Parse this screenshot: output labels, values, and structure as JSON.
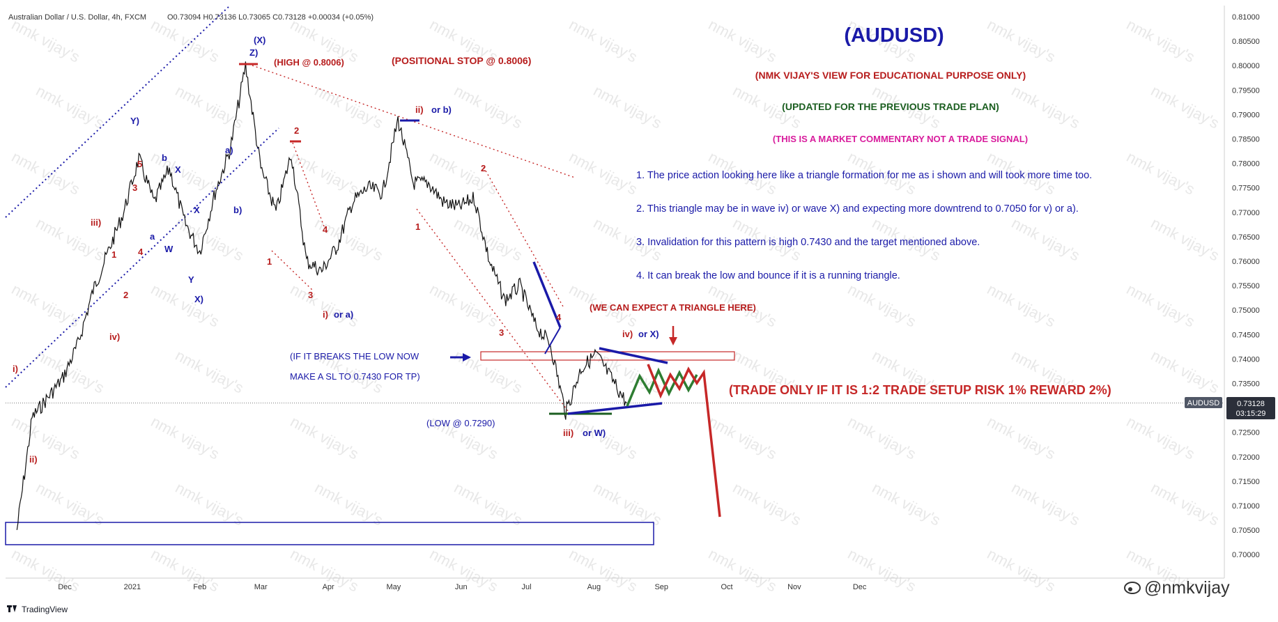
{
  "header": {
    "symbol": "Australian Dollar / U.S. Dollar, 4h, FXCM",
    "ohlc": "O0.73094  H0.73136  L0.73065  C0.73128  +0.00034 (+0.05%)"
  },
  "title": "(AUDUSD)",
  "subtitle_view": "(NMK VIJAY'S VIEW FOR EDUCATIONAL PURPOSE ONLY)",
  "subtitle_update": "(UPDATED FOR THE PREVIOUS TRADE PLAN)",
  "subtitle_commentary": "(THIS IS A MARKET COMMENTARY NOT A TRADE SIGNAL)",
  "notes": [
    "1. The price action looking here like a triangle formation for me as i shown and will took  more time too.",
    "2. This triangle may be in wave iv) or wave X) and expecting more downtrend to 0.7050 for v) or a).",
    "3. Invalidation for this pattern is high 0.7430 and the target mentioned above.",
    "4. It can break the low and bounce if it is a running triangle."
  ],
  "annotations": {
    "high": "(HIGH @ 0.8006)",
    "positional_stop": "(POSITIONAL STOP @ 0.8006)",
    "triangle_expect": "(WE CAN EXPECT A TRIANGLE HERE)",
    "breaks_low_1": "(IF IT BREAKS THE LOW NOW",
    "breaks_low_2": "MAKE A SL TO 0.7430 FOR TP)",
    "low": "(LOW @ 0.7290)",
    "trade_rule": "(TRADE ONLY IF IT IS 1:2 TRADE SETUP RISK 1% REWARD 2%)"
  },
  "wave_labels": {
    "X_top": "(X)",
    "Z": "Z)",
    "Y_top": "Y)",
    "iii": "iii)",
    "iv_left": "iv)",
    "i_left": "i)",
    "ii_left": "ii)",
    "a_small": "a)",
    "b_small": "b)",
    "b_lower": "b",
    "a_lower": "a",
    "X_mid": "X",
    "X_mid2": "X",
    "W": "W",
    "Y_mid": "Y",
    "X_lower": "X)",
    "n1": "1",
    "n2": "2",
    "n3": "3",
    "n4": "4",
    "n5": "5",
    "ii_or_b_num": "ii)",
    "ii_or_b_txt": "or b)",
    "i_or_a_num": "i)",
    "i_or_a_txt": "or a)",
    "iv_or_X_num": "iv)",
    "iv_or_X_txt": "or X)",
    "iii_or_W_num": "iii)",
    "iii_or_W_txt": "or W)"
  },
  "price_badge": {
    "symbol": "AUDUSD",
    "price": "0.73128",
    "countdown": "03:15:29"
  },
  "y_axis_labels": [
    "0.81000",
    "0.80500",
    "0.80000",
    "0.79500",
    "0.79000",
    "0.78500",
    "0.78000",
    "0.77500",
    "0.77000",
    "0.76500",
    "0.76000",
    "0.75500",
    "0.75000",
    "0.74500",
    "0.74000",
    "0.73500",
    "0.72500",
    "0.72000",
    "0.71500",
    "0.71000",
    "0.70500",
    "0.70000"
  ],
  "x_axis_labels": [
    "Dec",
    "2021",
    "Feb",
    "Mar",
    "Apr",
    "May",
    "Jun",
    "Jul",
    "Aug",
    "Sep",
    "Oct",
    "Nov",
    "Dec"
  ],
  "watermark_text": "nmk vijay's",
  "branding": {
    "tradingview": "TradingView",
    "handle": "@nmkvijay"
  },
  "colors": {
    "navy": "#1a1aa8",
    "red": "#b71c1c",
    "green": "#1b5e20",
    "magenta": "#d81b9c",
    "price_line": "#111111"
  },
  "chart_data": {
    "type": "line",
    "title": "Australian Dollar / U.S. Dollar, 4h, FXCM",
    "ylim": [
      0.697,
      0.812
    ],
    "x": [
      "2020-11-09",
      "2020-11-16",
      "2020-11-23",
      "2020-11-30",
      "2020-12-07",
      "2020-12-14",
      "2020-12-21",
      "2020-12-28",
      "2021-01-04",
      "2021-01-11",
      "2021-01-18",
      "2021-01-25",
      "2021-02-01",
      "2021-02-08",
      "2021-02-15",
      "2021-02-22",
      "2021-03-01",
      "2021-03-08",
      "2021-03-15",
      "2021-03-22",
      "2021-03-29",
      "2021-04-05",
      "2021-04-12",
      "2021-04-19",
      "2021-04-26",
      "2021-05-03",
      "2021-05-10",
      "2021-05-17",
      "2021-05-24",
      "2021-05-31",
      "2021-06-07",
      "2021-06-14",
      "2021-06-21",
      "2021-06-28",
      "2021-07-05",
      "2021-07-12",
      "2021-07-19",
      "2021-07-26",
      "2021-08-02",
      "2021-08-09",
      "2021-08-16"
    ],
    "series": [
      {
        "values": [
          0.705,
          0.728,
          0.732,
          0.736,
          0.743,
          0.754,
          0.762,
          0.77,
          0.781,
          0.772,
          0.779,
          0.768,
          0.762,
          0.774,
          0.783,
          0.8,
          0.779,
          0.77,
          0.782,
          0.76,
          0.758,
          0.763,
          0.772,
          0.775,
          0.774,
          0.789,
          0.776,
          0.776,
          0.772,
          0.771,
          0.773,
          0.76,
          0.752,
          0.755,
          0.747,
          0.743,
          0.729,
          0.738,
          0.741,
          0.736,
          0.731
        ]
      }
    ],
    "projection": {
      "x": [
        "2021-08-23",
        "2021-08-30",
        "2021-09-06",
        "2021-09-13",
        "2021-09-20"
      ],
      "values": [
        0.7395,
        0.7365,
        0.737,
        0.725,
        0.708
      ]
    },
    "levels": [
      {
        "value": 0.8006
      },
      {
        "value": 0.743
      },
      {
        "value": 0.729
      },
      {
        "value": 0.705
      }
    ]
  }
}
